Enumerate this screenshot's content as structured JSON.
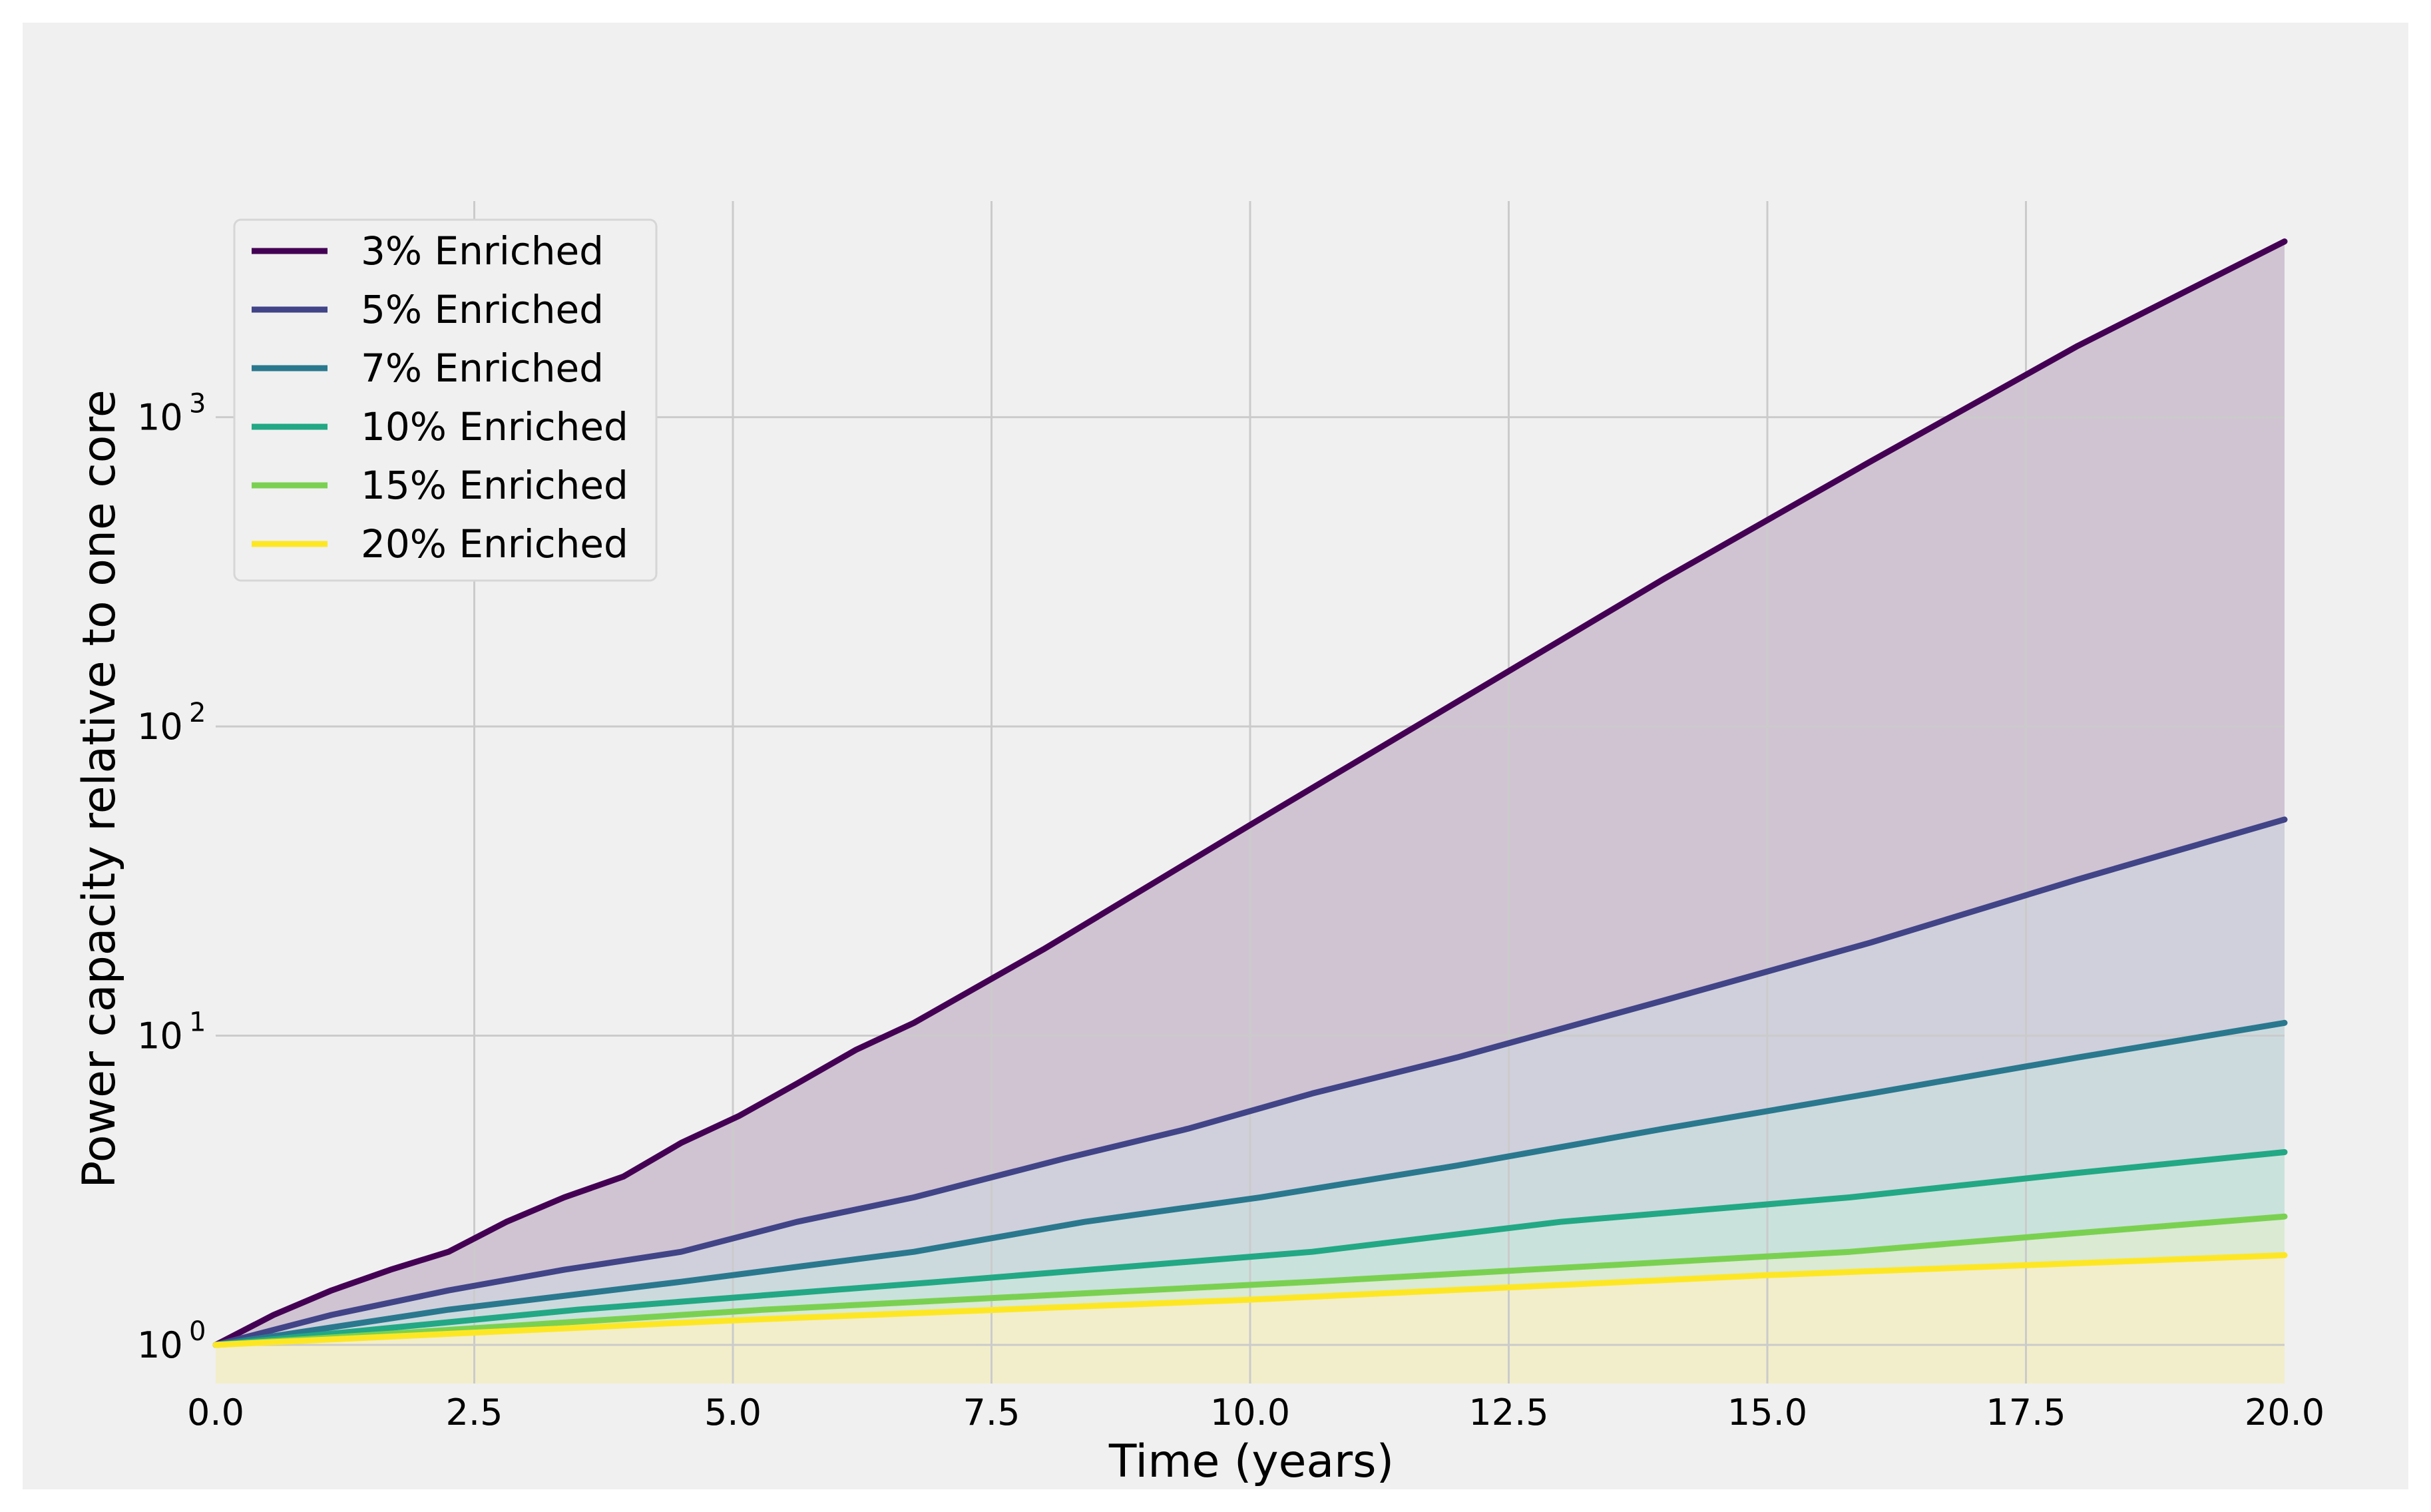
{
  "chart_data": {
    "type": "area",
    "title": "",
    "xlabel": "Time (years)",
    "ylabel": "Power capacity relative to one core",
    "xlim": [
      0,
      20
    ],
    "ylim": [
      0.75,
      5000
    ],
    "y_scale": "log",
    "grid": true,
    "legend_position": "top-left",
    "x_tick_labels": [
      "0.0",
      "2.5",
      "5.0",
      "7.5",
      "10.0",
      "12.5",
      "15.0",
      "17.5",
      "20.0"
    ],
    "y_tick_labels": [
      {
        "base": "10",
        "exp": "0"
      },
      {
        "base": "10",
        "exp": "1"
      },
      {
        "base": "10",
        "exp": "2"
      },
      {
        "base": "10",
        "exp": "3"
      }
    ],
    "series": [
      {
        "name": "3% Enriched",
        "color": "#440154",
        "x": [
          0,
          0.56,
          1.12,
          1.69,
          2.25,
          2.81,
          3.37,
          3.94,
          4.5,
          5.06,
          5.62,
          6.19,
          6.75,
          8,
          10,
          12,
          14,
          16,
          18,
          20
        ],
        "y": [
          1,
          1.25,
          1.5,
          1.75,
          2,
          2.5,
          3,
          3.5,
          4.5,
          5.5,
          7,
          9,
          11,
          19,
          48,
          120,
          300,
          720,
          1700,
          3700
        ]
      },
      {
        "name": "5% Enriched",
        "color": "#414487",
        "x": [
          0,
          1.12,
          2.25,
          3.37,
          4.5,
          5.62,
          6.75,
          8.2,
          9.4,
          10.6,
          12,
          14,
          16,
          18,
          20
        ],
        "y": [
          1,
          1.25,
          1.5,
          1.75,
          2,
          2.5,
          3,
          4,
          5,
          6.5,
          8.5,
          13,
          20,
          32,
          50
        ]
      },
      {
        "name": "7% Enriched",
        "color": "#2a788e",
        "x": [
          0,
          2.25,
          4.5,
          6.75,
          8.4,
          10.1,
          12,
          14,
          16,
          18,
          20
        ],
        "y": [
          1,
          1.3,
          1.6,
          2,
          2.5,
          3,
          3.8,
          5,
          6.5,
          8.5,
          11
        ]
      },
      {
        "name": "10% Enriched",
        "color": "#22a884",
        "x": [
          0,
          3.5,
          7,
          10.6,
          13,
          15.8,
          18,
          20
        ],
        "y": [
          1,
          1.3,
          1.6,
          2,
          2.5,
          3,
          3.6,
          4.2
        ]
      },
      {
        "name": "15% Enriched",
        "color": "#7ad151",
        "x": [
          0,
          5.3,
          10.6,
          15.8,
          18,
          20
        ],
        "y": [
          1,
          1.3,
          1.6,
          2,
          2.3,
          2.6
        ]
      },
      {
        "name": "20% Enriched",
        "color": "#fde725",
        "x": [
          0,
          5,
          10,
          15,
          20
        ],
        "y": [
          1,
          1.2,
          1.4,
          1.68,
          1.95
        ]
      }
    ],
    "fill_opacity": 0.18
  }
}
